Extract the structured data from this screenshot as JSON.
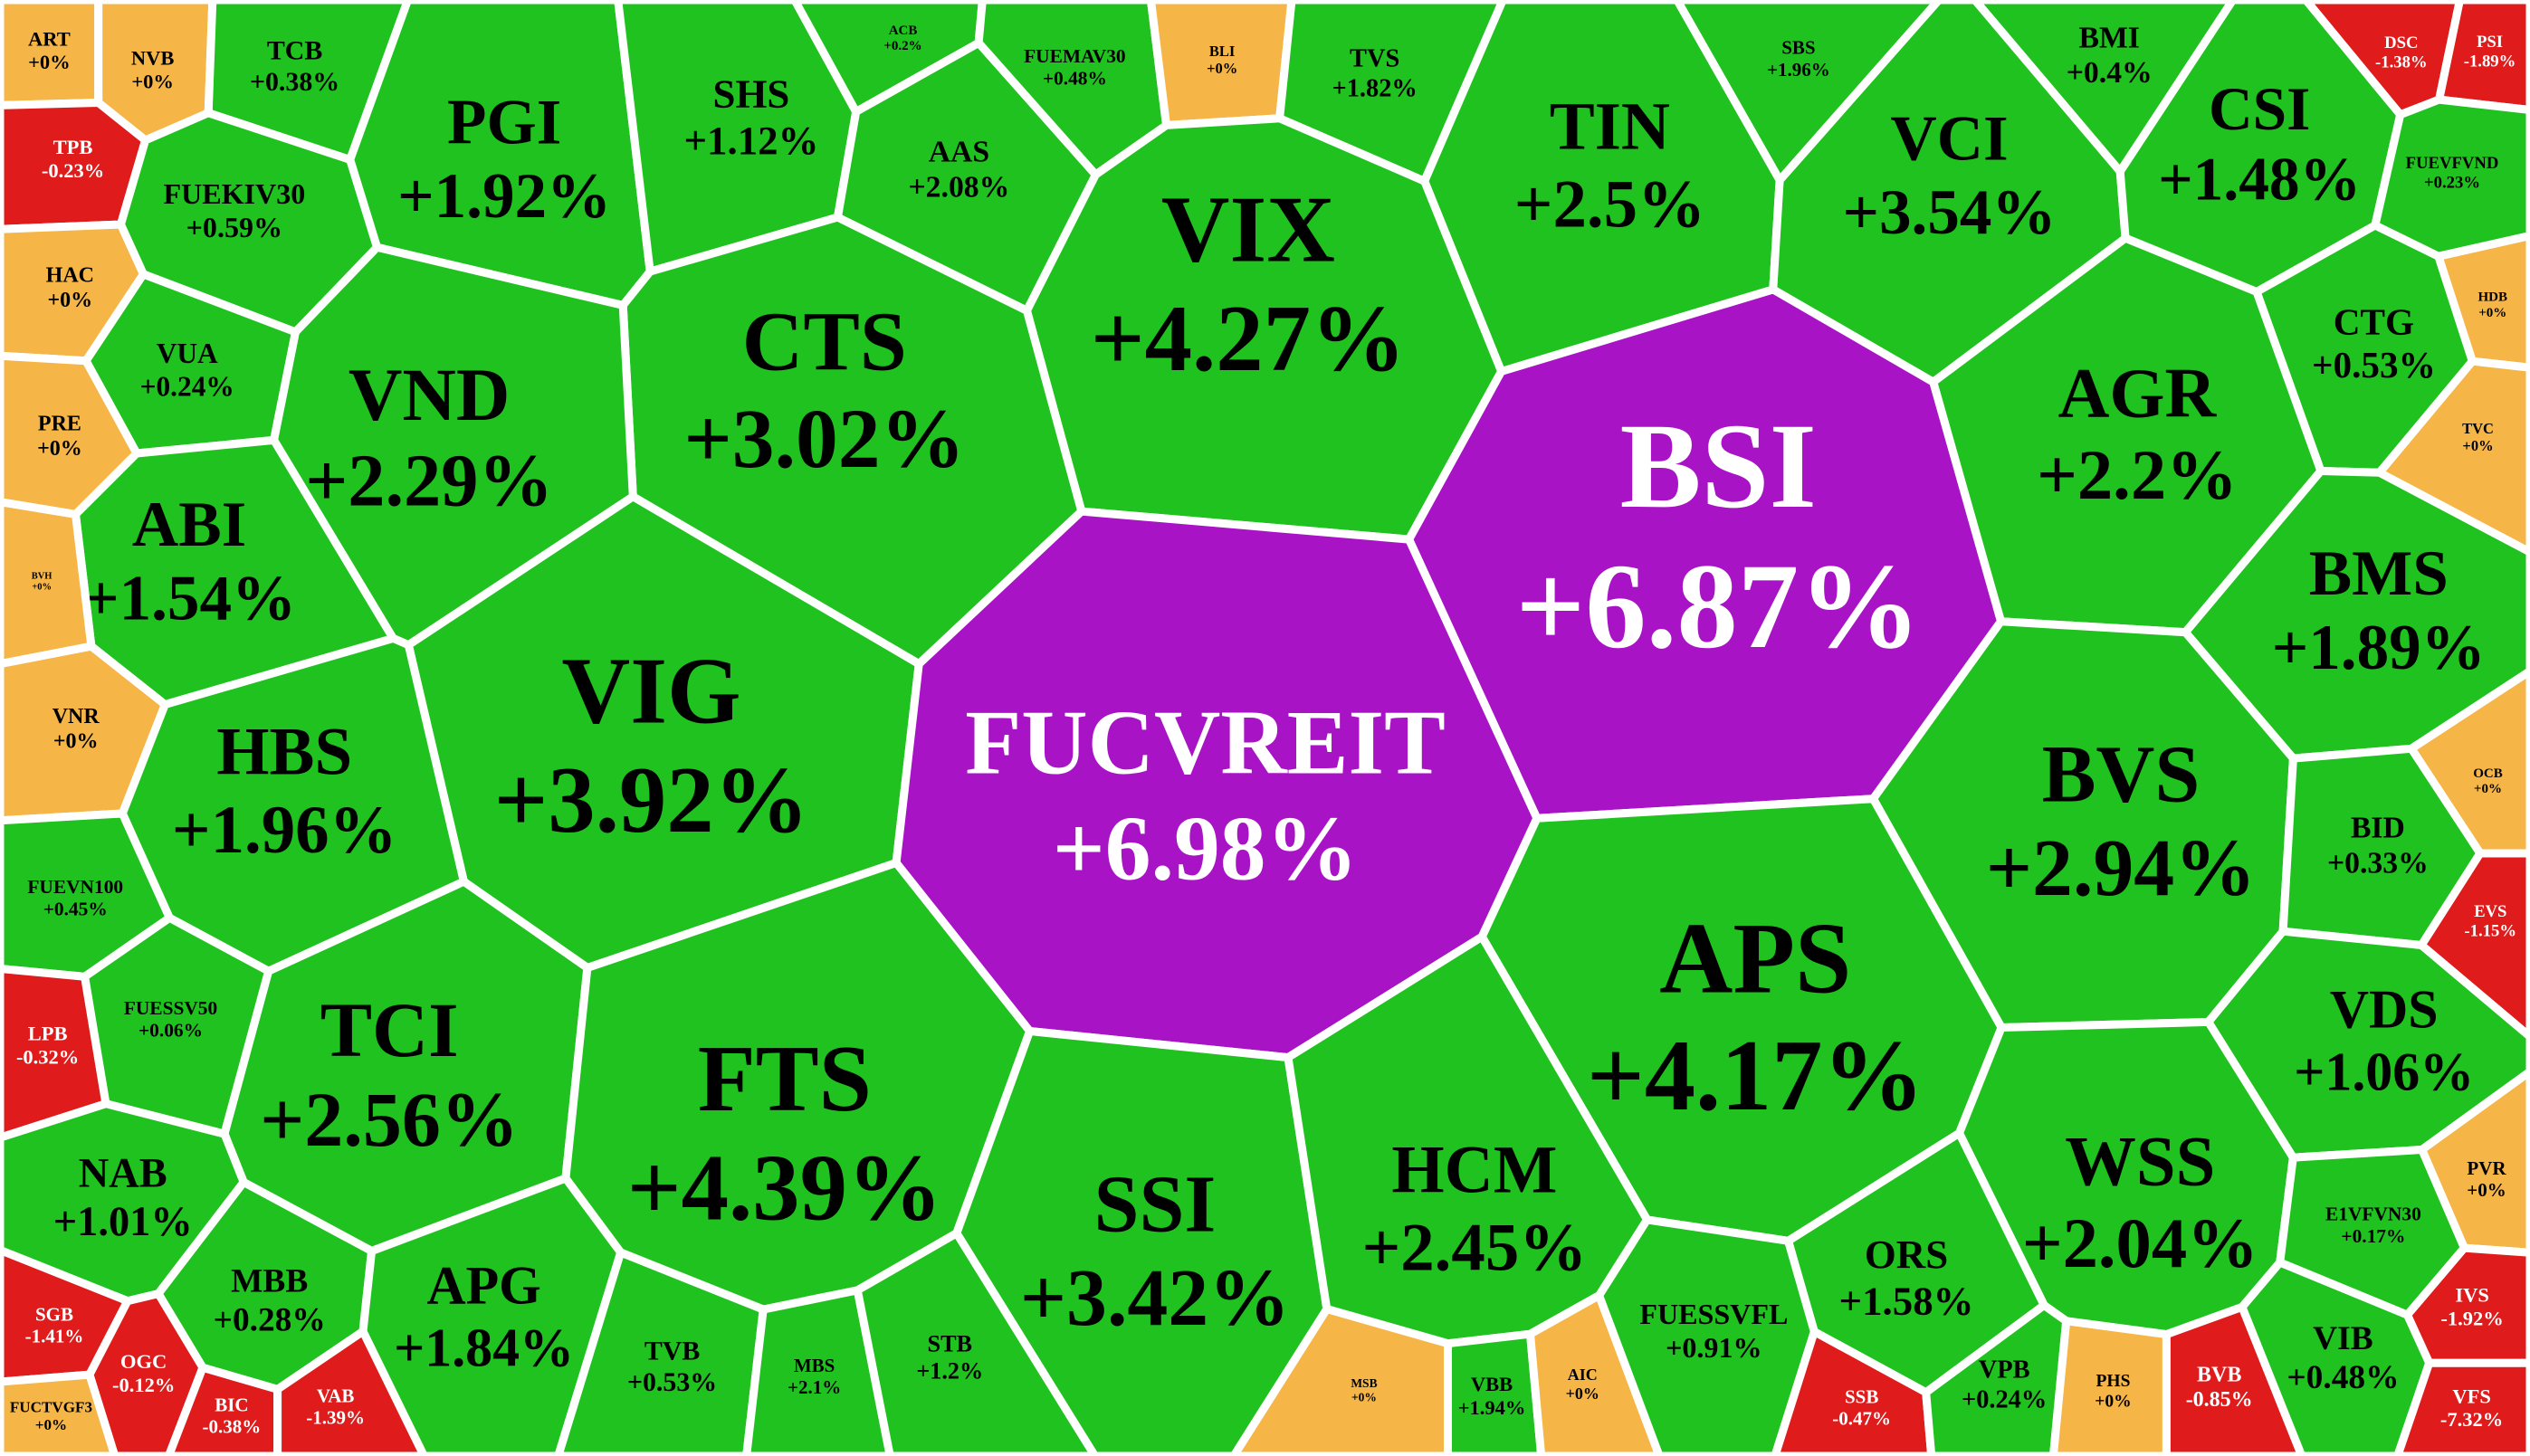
{
  "chart_data": {
    "type": "voronoi-treemap",
    "categories": [
      "ART",
      "NVB",
      "TCB",
      "PGI",
      "SHS",
      "ACB",
      "FUEMAV30",
      "BLI",
      "TVS",
      "SBS",
      "BMI",
      "DSC",
      "PSI",
      "TPB",
      "AAS",
      "TIN",
      "VCI",
      "CSI",
      "FUEKIV30",
      "VIX",
      "FUEVFVND",
      "HAC",
      "VUA",
      "CTS",
      "VND",
      "HDB",
      "CTG",
      "AGR",
      "BSI",
      "PRE",
      "TVC",
      "ABI",
      "BVH",
      "BMS",
      "VIG",
      "FUCVREIT",
      "VNR",
      "HBS",
      "BVS",
      "OCB",
      "BID",
      "FUEVN100",
      "EVS",
      "LPB",
      "FUESSV50",
      "TCI",
      "FTS",
      "APS",
      "VDS",
      "SSI",
      "HCM",
      "NAB",
      "WSS",
      "PVR",
      "E1VFVN30",
      "MBB",
      "APG",
      "SGB",
      "ORS",
      "IVS",
      "OGC",
      "BIC",
      "VAB",
      "FUCTVGF3",
      "TVB",
      "MBS",
      "STB",
      "MSB",
      "VBB",
      "AIC",
      "FUESSVFL",
      "SSB",
      "VPB",
      "PHS",
      "BVB",
      "VIB",
      "VFS"
    ],
    "values": [
      0,
      0,
      0.38,
      1.92,
      1.12,
      0.2,
      0.48,
      0,
      1.82,
      1.96,
      0.4,
      -1.38,
      -1.89,
      -0.23,
      2.08,
      2.5,
      3.54,
      1.48,
      0.59,
      4.27,
      0.23,
      0,
      0.24,
      3.02,
      2.29,
      0,
      0.53,
      2.2,
      6.87,
      0,
      0,
      1.54,
      0,
      1.89,
      3.92,
      6.98,
      0,
      1.96,
      2.94,
      0,
      0.33,
      0.45,
      -1.15,
      -0.32,
      0.06,
      2.56,
      4.39,
      4.17,
      1.06,
      3.42,
      2.45,
      1.01,
      2.04,
      0,
      0.17,
      0.28,
      1.84,
      -1.41,
      1.58,
      -1.92,
      -0.12,
      -0.38,
      -1.39,
      0,
      0.53,
      2.1,
      1.2,
      0,
      1.94,
      0,
      0.91,
      -0.47,
      0.24,
      0,
      -0.85,
      0.48,
      -7.32
    ],
    "value_labels": [
      "+0%",
      "+0%",
      "+0.38%",
      "+1.92%",
      "+1.12%",
      "+0.2%",
      "+0.48%",
      "+0%",
      "+1.82%",
      "+1.96%",
      "+0.4%",
      "-1.38%",
      "-1.89%",
      "-0.23%",
      "+2.08%",
      "+2.5%",
      "+3.54%",
      "+1.48%",
      "+0.59%",
      "+4.27%",
      "+0.23%",
      "+0%",
      "+0.24%",
      "+3.02%",
      "+2.29%",
      "+0%",
      "+0.53%",
      "+2.2%",
      "+6.87%",
      "+0%",
      "+0%",
      "+1.54%",
      "+0%",
      "+1.89%",
      "+3.92%",
      "+6.98%",
      "+0%",
      "+1.96%",
      "+2.94%",
      "+0%",
      "+0.33%",
      "+0.45%",
      "-1.15%",
      "-0.32%",
      "+0.06%",
      "+2.56%",
      "+4.39%",
      "+4.17%",
      "+1.06%",
      "+3.42%",
      "+2.45%",
      "+1.01%",
      "+2.04%",
      "+0%",
      "+0.17%",
      "+0.28%",
      "+1.84%",
      "-1.41%",
      "+1.58%",
      "-1.92%",
      "-0.12%",
      "-0.38%",
      "-1.39%",
      "+0%",
      "+0.53%",
      "+2.1%",
      "+1.2%",
      "+0%",
      "+1.94%",
      "+0%",
      "+0.91%",
      "-0.47%",
      "+0.24%",
      "+0%",
      "-0.85%",
      "+0.48%",
      "-7.32%"
    ],
    "colors": [
      "#f5b547",
      "#f5b547",
      "#1fc21f",
      "#1fc21f",
      "#1fc21f",
      "#1fc21f",
      "#1fc21f",
      "#f5b547",
      "#1fc21f",
      "#1fc21f",
      "#1fc21f",
      "#df1b1b",
      "#df1b1b",
      "#df1b1b",
      "#1fc21f",
      "#1fc21f",
      "#1fc21f",
      "#1fc21f",
      "#1fc21f",
      "#1fc21f",
      "#1fc21f",
      "#f5b547",
      "#1fc21f",
      "#1fc21f",
      "#1fc21f",
      "#f5b547",
      "#1fc21f",
      "#1fc21f",
      "#a913c6",
      "#f5b547",
      "#f5b547",
      "#1fc21f",
      "#f5b547",
      "#1fc21f",
      "#1fc21f",
      "#a913c6",
      "#f5b547",
      "#1fc21f",
      "#1fc21f",
      "#f5b547",
      "#1fc21f",
      "#1fc21f",
      "#df1b1b",
      "#df1b1b",
      "#1fc21f",
      "#1fc21f",
      "#1fc21f",
      "#1fc21f",
      "#1fc21f",
      "#1fc21f",
      "#1fc21f",
      "#1fc21f",
      "#1fc21f",
      "#f5b547",
      "#1fc21f",
      "#1fc21f",
      "#1fc21f",
      "#df1b1b",
      "#1fc21f",
      "#df1b1b",
      "#df1b1b",
      "#df1b1b",
      "#df1b1b",
      "#f5b547",
      "#1fc21f",
      "#1fc21f",
      "#1fc21f",
      "#f5b547",
      "#1fc21f",
      "#f5b547",
      "#1fc21f",
      "#df1b1b",
      "#1fc21f",
      "#f5b547",
      "#df1b1b",
      "#1fc21f",
      "#df1b1b"
    ]
  }
}
